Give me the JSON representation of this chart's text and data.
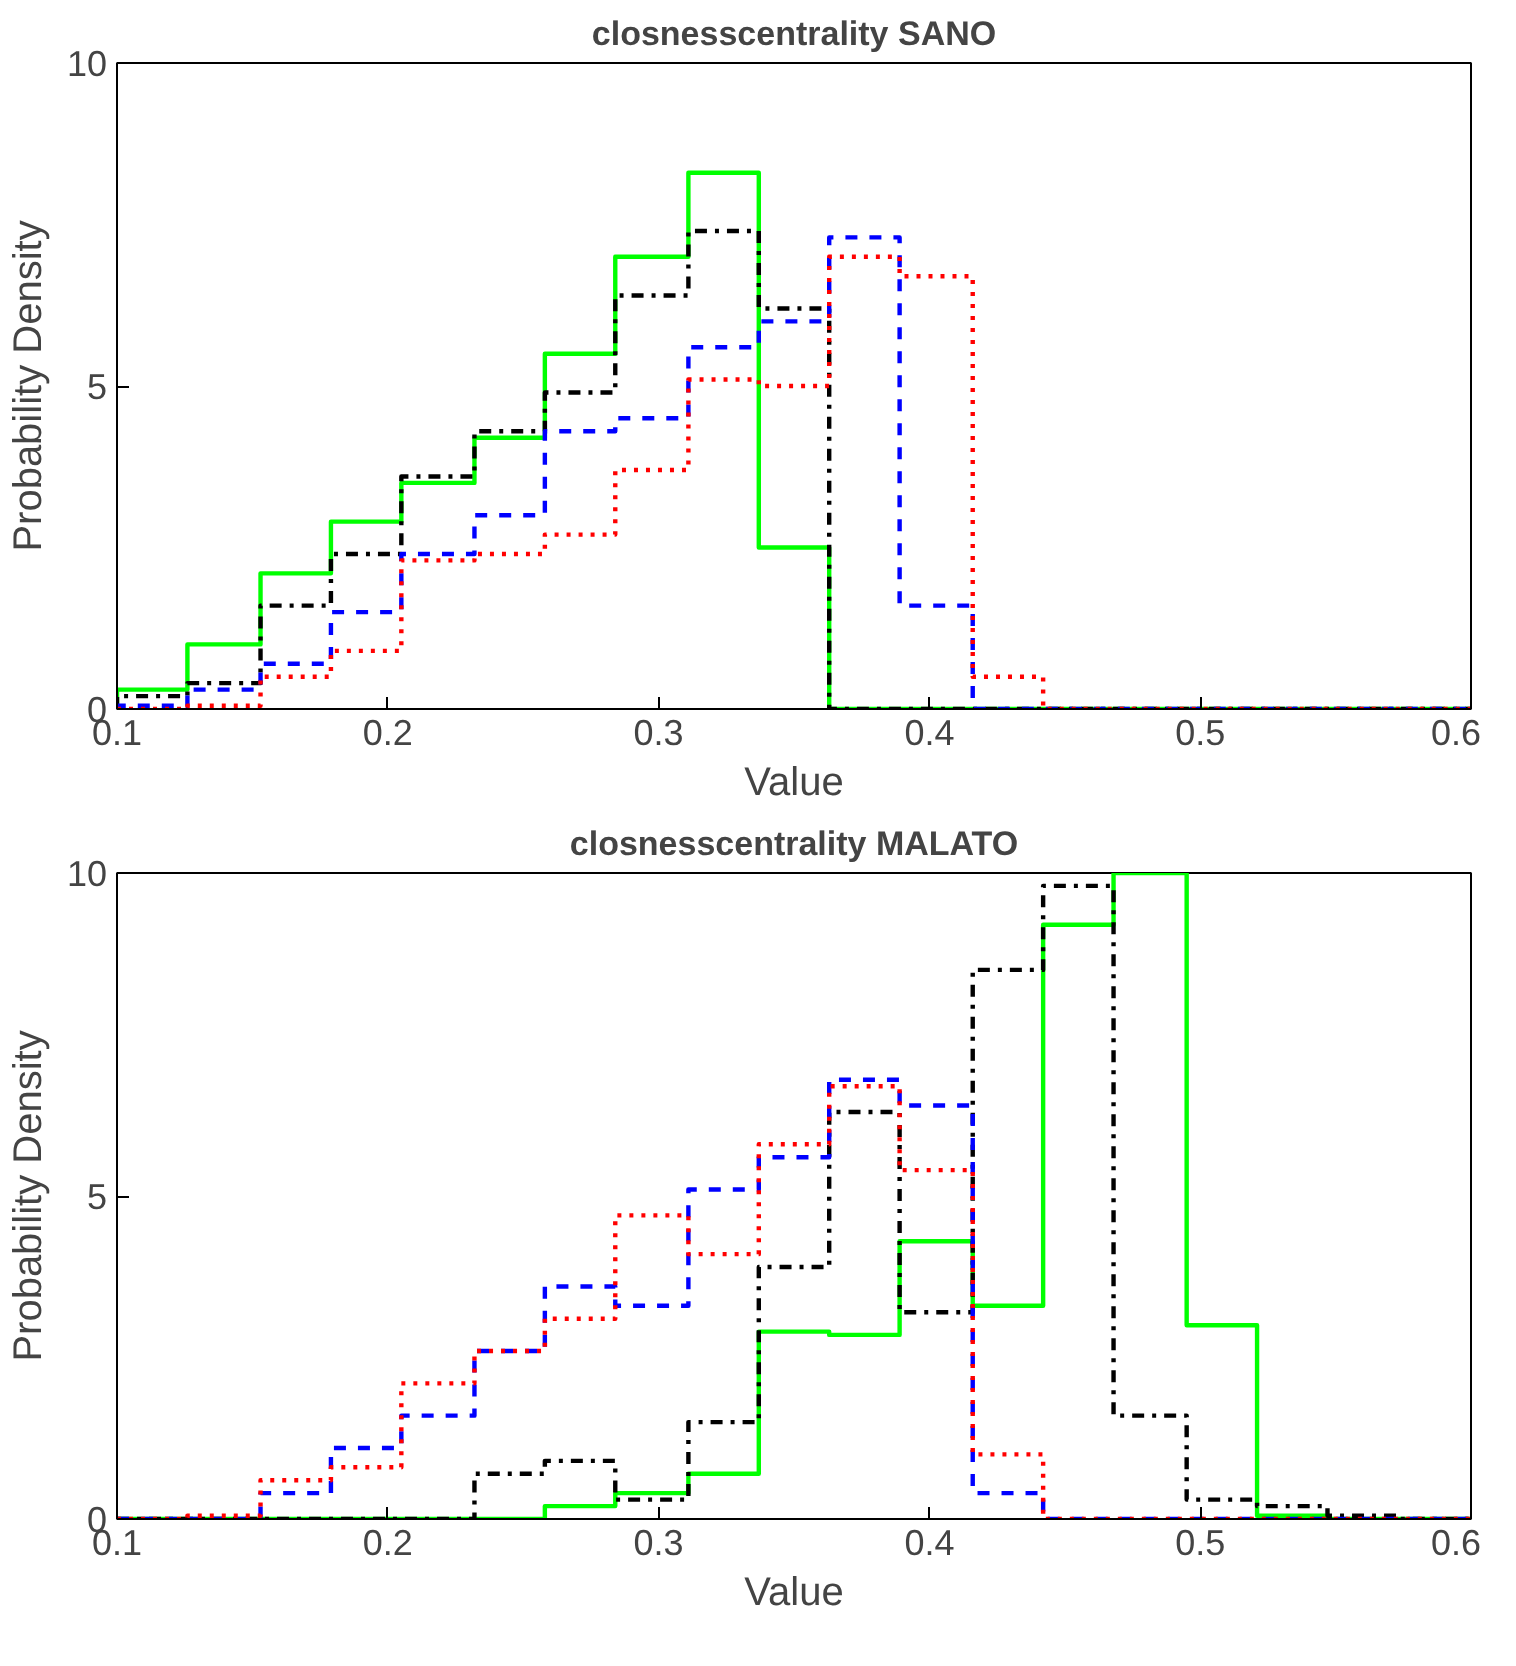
{
  "chart_data": [
    {
      "type": "histogram",
      "title": "closnesscentrality SANO",
      "xlabel": "Value",
      "ylabel": "Probability Density",
      "bins": [
        0.1,
        0.126,
        0.153,
        0.179,
        0.205,
        0.232,
        0.258,
        0.284,
        0.311,
        0.337,
        0.363,
        0.389,
        0.416,
        0.442,
        0.468,
        0.495,
        0.521,
        0.547,
        0.574,
        0.6
      ],
      "series": [
        {
          "color": "#00ff00",
          "line_style": "solid",
          "values": [
            0.3,
            1.0,
            2.1,
            2.9,
            3.5,
            4.2,
            5.5,
            7.0,
            8.3,
            2.5,
            0,
            0,
            0,
            0,
            0,
            0,
            0,
            0,
            0
          ]
        },
        {
          "color": "#000000",
          "line_style": "dashdot",
          "values": [
            0.2,
            0.4,
            1.6,
            2.4,
            3.6,
            4.3,
            4.9,
            6.4,
            7.4,
            6.2,
            0,
            0,
            0,
            0,
            0,
            0,
            0,
            0,
            0
          ]
        },
        {
          "color": "#0000ff",
          "line_style": "dashed",
          "values": [
            0.05,
            0.3,
            0.7,
            1.5,
            2.4,
            3.0,
            4.3,
            4.5,
            5.6,
            6.0,
            7.3,
            1.6,
            0,
            0,
            0,
            0,
            0,
            0,
            0
          ]
        },
        {
          "color": "#ff0000",
          "line_style": "dotted",
          "values": [
            0,
            0.05,
            0.5,
            0.9,
            2.3,
            2.4,
            2.7,
            3.7,
            5.1,
            5.0,
            7.0,
            6.7,
            0.5,
            0,
            0,
            0,
            0,
            0,
            0
          ]
        }
      ],
      "xlim": [
        0.1,
        0.6
      ],
      "ylim": [
        0,
        10
      ],
      "xticks": [
        0.1,
        0.2,
        0.3,
        0.4,
        0.5,
        0.6
      ],
      "yticks": [
        0,
        5,
        10
      ]
    },
    {
      "type": "histogram",
      "title": "closnesscentrality MALATO",
      "xlabel": "Value",
      "ylabel": "Probability Density",
      "bins": [
        0.1,
        0.126,
        0.153,
        0.179,
        0.205,
        0.232,
        0.258,
        0.284,
        0.311,
        0.337,
        0.363,
        0.389,
        0.416,
        0.442,
        0.468,
        0.495,
        0.521,
        0.547,
        0.574,
        0.6
      ],
      "series": [
        {
          "color": "#00ff00",
          "line_style": "solid",
          "values": [
            0,
            0,
            0,
            0,
            0,
            0,
            0.2,
            0.4,
            0.7,
            2.9,
            2.85,
            4.3,
            3.3,
            9.2,
            10.0,
            3.0,
            0.05,
            0,
            0
          ]
        },
        {
          "color": "#000000",
          "line_style": "dashdot",
          "values": [
            0,
            0,
            0,
            0,
            0,
            0.7,
            0.9,
            0.3,
            1.5,
            3.9,
            6.3,
            3.2,
            8.5,
            9.8,
            1.6,
            0.3,
            0.2,
            0.05,
            0
          ]
        },
        {
          "color": "#0000ff",
          "line_style": "dashed",
          "values": [
            0,
            0,
            0.4,
            1.1,
            1.6,
            2.6,
            3.6,
            3.3,
            5.1,
            5.6,
            6.8,
            6.4,
            0.4,
            0,
            0,
            0,
            0,
            0,
            0
          ]
        },
        {
          "color": "#ff0000",
          "line_style": "dotted",
          "values": [
            0,
            0.05,
            0.6,
            0.8,
            2.1,
            2.6,
            3.1,
            4.7,
            4.1,
            5.8,
            6.7,
            5.4,
            1.0,
            0,
            0,
            0,
            0,
            0,
            0
          ]
        }
      ],
      "xlim": [
        0.1,
        0.6
      ],
      "ylim": [
        0,
        10
      ],
      "xticks": [
        0.1,
        0.2,
        0.3,
        0.4,
        0.5,
        0.6
      ],
      "yticks": [
        0,
        5,
        10
      ]
    }
  ]
}
